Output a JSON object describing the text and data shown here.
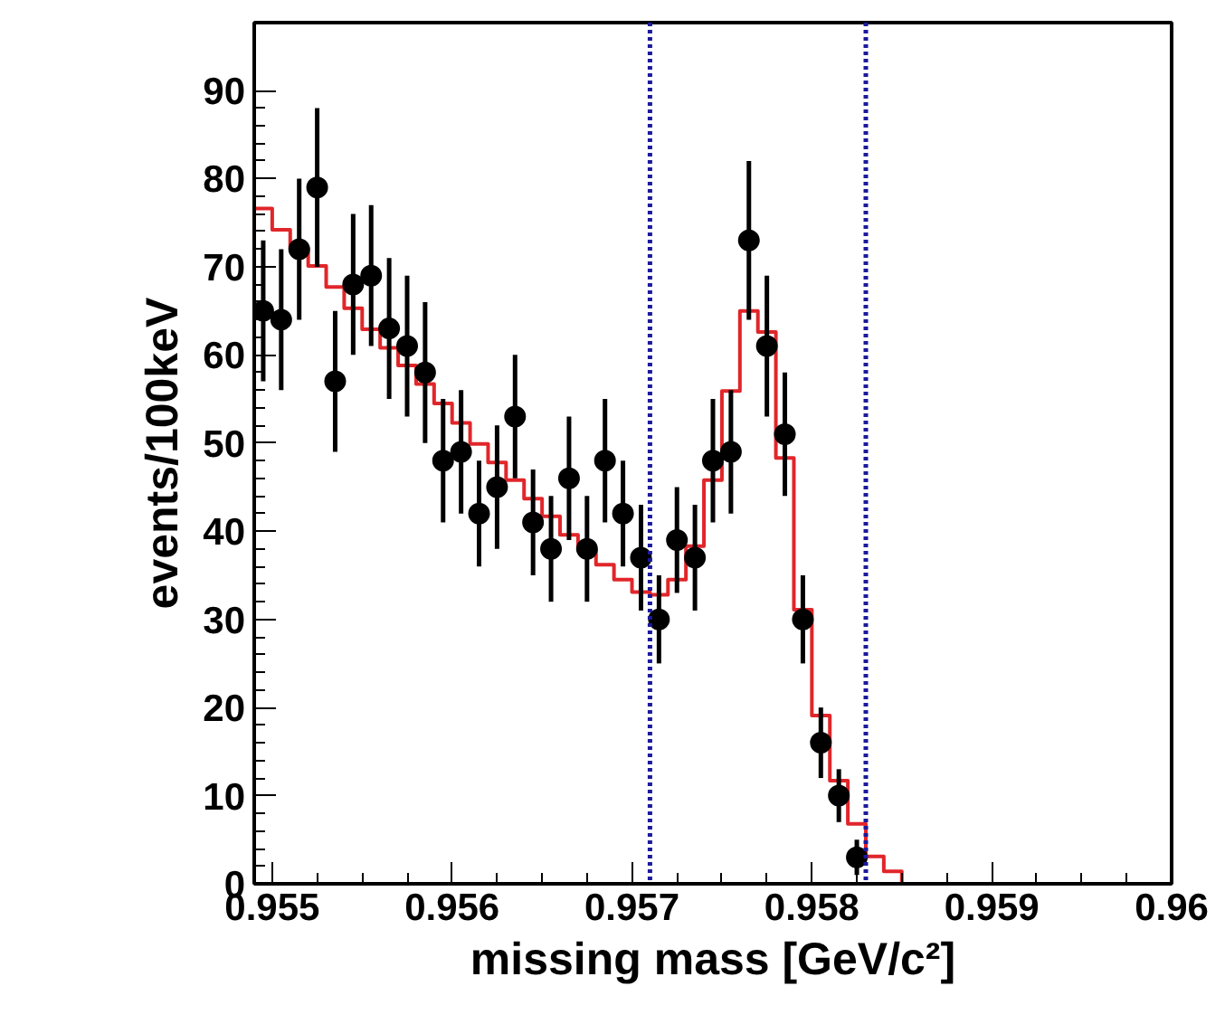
{
  "chart_data": {
    "type": "scatter",
    "xlabel": "missing mass [GeV/c²]",
    "ylabel": "events/100keV",
    "xlim": [
      0.9549,
      0.96
    ],
    "ylim": [
      0,
      97.7
    ],
    "xticks": [
      0.955,
      0.956,
      0.957,
      0.958,
      0.959,
      {
        "value": 0.96,
        "label": "0.96"
      }
    ],
    "yticks": [
      0,
      10,
      20,
      30,
      40,
      50,
      60,
      70,
      80,
      90
    ],
    "grid": false,
    "marker": "circle",
    "ref_lines": [
      {
        "axis": "x",
        "value": 0.9571,
        "color": "#1a1a9c",
        "line_style": "dotted"
      },
      {
        "axis": "x",
        "value": 0.9583,
        "color": "#1a1a9c",
        "line_style": "dotted"
      }
    ],
    "series": [
      {
        "type": "histogram",
        "color": "#e0262a",
        "bins": [
          0.9549,
          0.955,
          0.9551,
          0.9552,
          0.9553,
          0.9554,
          0.9555,
          0.9556,
          0.9557,
          0.9558,
          0.9559,
          0.956,
          0.9561,
          0.9562,
          0.9563,
          0.9564,
          0.9565,
          0.9566,
          0.9567,
          0.9568,
          0.9569,
          0.957,
          0.9571,
          0.9572,
          0.9573,
          0.9574,
          0.9575,
          0.9576,
          0.9577,
          0.9578,
          0.9579,
          0.958,
          0.9581,
          0.9582,
          0.9583,
          0.9584,
          0.9585,
          0.9586,
          0.9587,
          0.9588,
          0.9589,
          0.959,
          0.9591,
          0.9592,
          0.9593,
          0.9594,
          0.9595,
          0.9596,
          0.9597,
          0.9598,
          0.9599,
          0.96
        ],
        "values": [
          76.6,
          74.2,
          72.1,
          70.1,
          67.7,
          65.3,
          62.9,
          60.8,
          58.8,
          56.7,
          54.5,
          52.3,
          49.9,
          47.8,
          45.8,
          43.7,
          41.7,
          39.6,
          37.9,
          36.2,
          34.5,
          33.1,
          32.8,
          34.5,
          38.3,
          45.8,
          55.9,
          65.0,
          62.6,
          48.3,
          31.1,
          19.1,
          11.7,
          6.8,
          3.1,
          1.4,
          0,
          0,
          0,
          0,
          0,
          0,
          0,
          0,
          0,
          0,
          0,
          0,
          0,
          0,
          0
        ]
      },
      {
        "color": "#000000",
        "x": [
          0.95495,
          0.95505,
          0.95515,
          0.95525,
          0.95535,
          0.95545,
          0.95555,
          0.95565,
          0.95575,
          0.95585,
          0.95595,
          0.95605,
          0.95615,
          0.95625,
          0.95635,
          0.95645,
          0.95655,
          0.95665,
          0.95675,
          0.95685,
          0.95695,
          0.95705,
          0.95715,
          0.95725,
          0.95735,
          0.95745,
          0.95755,
          0.95765,
          0.95775,
          0.95785,
          0.95795,
          0.95805,
          0.95815,
          0.95825
        ],
        "values": [
          65,
          64,
          72,
          79,
          57,
          68,
          69,
          63,
          61,
          58,
          48,
          49,
          42,
          45,
          53,
          41,
          38,
          46,
          38,
          48,
          42,
          37,
          30,
          39,
          37,
          48,
          49,
          73,
          61,
          51,
          30,
          16,
          10,
          3
        ],
        "errors": [
          8,
          8,
          8,
          9,
          8,
          8,
          8,
          8,
          8,
          8,
          7,
          7,
          6,
          7,
          7,
          6,
          6,
          7,
          6,
          7,
          6,
          6,
          5,
          6,
          6,
          7,
          7,
          9,
          8,
          7,
          5,
          4,
          3,
          2
        ]
      }
    ]
  }
}
